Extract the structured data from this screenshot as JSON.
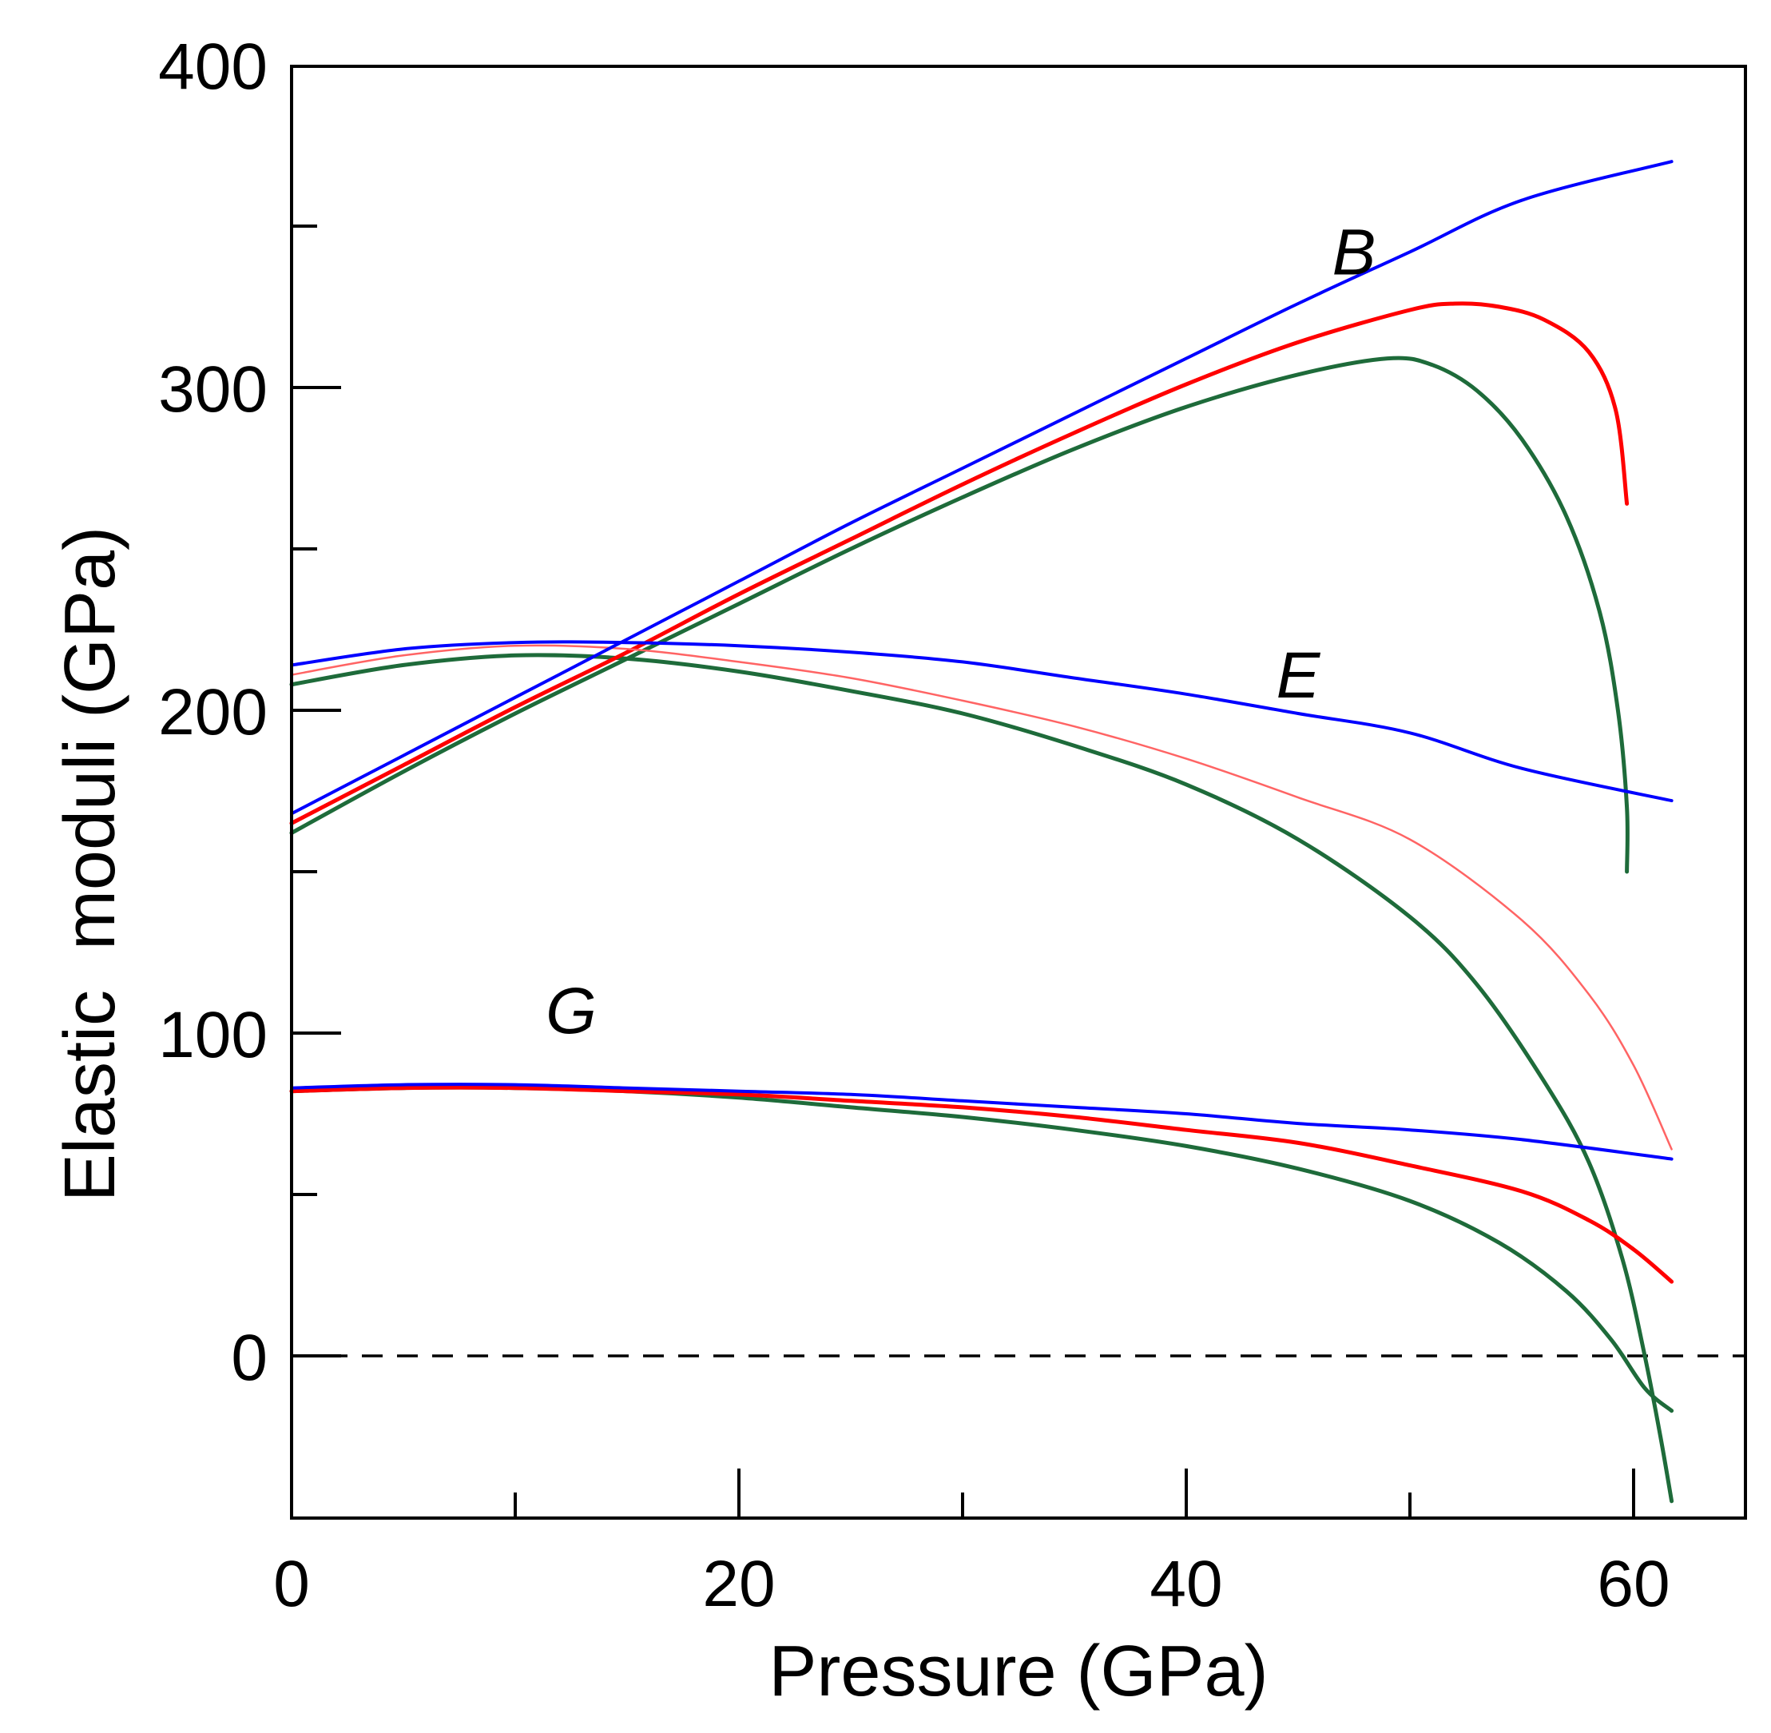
{
  "chart_data": {
    "type": "line",
    "title": "",
    "xlabel": "Pressure (GPa)",
    "ylabel": "Elastic  moduli (GPa)",
    "xlim": [
      0,
      65
    ],
    "ylim": [
      -50,
      400
    ],
    "x_ticks": [
      0,
      20,
      40,
      60
    ],
    "x_minor_ticks": [
      10,
      30,
      50
    ],
    "y_ticks": [
      0,
      100,
      200,
      300,
      400
    ],
    "y_minor_ticks": [
      50,
      150,
      250,
      350
    ],
    "reference_line": {
      "y": 0,
      "style": "dashed",
      "color": "#000000"
    },
    "annotations": [
      {
        "text": "B",
        "x": 47.5,
        "y": 335
      },
      {
        "text": "E",
        "x": 45,
        "y": 204
      },
      {
        "text": "G",
        "x": 12.5,
        "y": 100
      }
    ],
    "series": [
      {
        "name": "B (blue)",
        "group": "B",
        "color": "#0000ff",
        "width": 4,
        "points": [
          [
            0,
            168
          ],
          [
            5,
            186
          ],
          [
            10,
            204
          ],
          [
            15,
            222
          ],
          [
            20,
            240
          ],
          [
            25,
            258
          ],
          [
            30,
            275
          ],
          [
            35,
            292
          ],
          [
            40,
            309
          ],
          [
            45,
            326
          ],
          [
            50,
            342
          ],
          [
            55,
            358
          ],
          [
            61.7,
            370
          ]
        ]
      },
      {
        "name": "B (red)",
        "group": "B",
        "color": "#ff0000",
        "width": 5,
        "points": [
          [
            0,
            165
          ],
          [
            5,
            183
          ],
          [
            10,
            201
          ],
          [
            15,
            218
          ],
          [
            20,
            236
          ],
          [
            25,
            253
          ],
          [
            30,
            270
          ],
          [
            35,
            286
          ],
          [
            40,
            301
          ],
          [
            45,
            314
          ],
          [
            50,
            324
          ],
          [
            52,
            326
          ],
          [
            54,
            325
          ],
          [
            56,
            321
          ],
          [
            58,
            311
          ],
          [
            59.2,
            293
          ],
          [
            59.7,
            264
          ]
        ]
      },
      {
        "name": "B (green)",
        "group": "B",
        "color": "#1e6b3a",
        "width": 5,
        "points": [
          [
            0,
            162
          ],
          [
            5,
            181
          ],
          [
            10,
            199
          ],
          [
            15,
            216
          ],
          [
            20,
            233
          ],
          [
            25,
            250
          ],
          [
            30,
            266
          ],
          [
            35,
            281
          ],
          [
            40,
            294
          ],
          [
            45,
            304
          ],
          [
            49,
            309
          ],
          [
            51,
            307
          ],
          [
            53,
            299
          ],
          [
            55,
            284
          ],
          [
            57,
            260
          ],
          [
            58.5,
            230
          ],
          [
            59.3,
            200
          ],
          [
            59.7,
            170
          ],
          [
            59.7,
            150
          ]
        ]
      },
      {
        "name": "E (blue)",
        "group": "E",
        "color": "#0000ff",
        "width": 4,
        "points": [
          [
            0,
            214
          ],
          [
            5,
            219
          ],
          [
            10,
            221
          ],
          [
            15,
            221
          ],
          [
            20,
            220
          ],
          [
            25,
            218
          ],
          [
            30,
            215
          ],
          [
            35,
            210
          ],
          [
            40,
            205
          ],
          [
            45,
            199
          ],
          [
            50,
            193
          ],
          [
            55,
            182
          ],
          [
            61.7,
            172
          ]
        ]
      },
      {
        "name": "E (red)",
        "group": "E",
        "color": "#ff6464",
        "width": 2.5,
        "points": [
          [
            0,
            211
          ],
          [
            5,
            217
          ],
          [
            10,
            220
          ],
          [
            15,
            219
          ],
          [
            20,
            215
          ],
          [
            25,
            210
          ],
          [
            30,
            203
          ],
          [
            35,
            195
          ],
          [
            40,
            185
          ],
          [
            45,
            173
          ],
          [
            50,
            160
          ],
          [
            55,
            135
          ],
          [
            58,
            112
          ],
          [
            60,
            90
          ],
          [
            61.7,
            64
          ]
        ]
      },
      {
        "name": "E (green)",
        "group": "E",
        "color": "#1e6b3a",
        "width": 5,
        "points": [
          [
            0,
            208
          ],
          [
            5,
            214
          ],
          [
            10,
            217
          ],
          [
            15,
            216
          ],
          [
            20,
            212
          ],
          [
            25,
            206
          ],
          [
            30,
            199
          ],
          [
            35,
            189
          ],
          [
            40,
            177
          ],
          [
            45,
            160
          ],
          [
            50,
            136
          ],
          [
            53,
            115
          ],
          [
            56,
            85
          ],
          [
            58,
            60
          ],
          [
            59.5,
            30
          ],
          [
            60.5,
            0
          ],
          [
            61.2,
            -25
          ],
          [
            61.7,
            -45
          ]
        ]
      },
      {
        "name": "G (blue)",
        "group": "G",
        "color": "#0000ff",
        "width": 4,
        "points": [
          [
            0,
            83
          ],
          [
            5,
            84
          ],
          [
            10,
            84
          ],
          [
            15,
            83
          ],
          [
            20,
            82
          ],
          [
            25,
            81
          ],
          [
            30,
            79
          ],
          [
            35,
            77
          ],
          [
            40,
            75
          ],
          [
            45,
            72
          ],
          [
            50,
            70
          ],
          [
            55,
            67
          ],
          [
            61.7,
            61
          ]
        ]
      },
      {
        "name": "G (red)",
        "group": "G",
        "color": "#ff0000",
        "width": 5,
        "points": [
          [
            0,
            82
          ],
          [
            5,
            83
          ],
          [
            10,
            83
          ],
          [
            15,
            82
          ],
          [
            20,
            81
          ],
          [
            25,
            79
          ],
          [
            30,
            77
          ],
          [
            35,
            74
          ],
          [
            40,
            70
          ],
          [
            45,
            66
          ],
          [
            50,
            59
          ],
          [
            55,
            51
          ],
          [
            58,
            42
          ],
          [
            60,
            33
          ],
          [
            61.7,
            23
          ]
        ]
      },
      {
        "name": "G (green)",
        "group": "G",
        "color": "#1e6b3a",
        "width": 5,
        "points": [
          [
            0,
            82
          ],
          [
            5,
            83
          ],
          [
            10,
            83
          ],
          [
            15,
            82
          ],
          [
            20,
            80
          ],
          [
            25,
            77
          ],
          [
            30,
            74
          ],
          [
            35,
            70
          ],
          [
            40,
            65
          ],
          [
            45,
            58
          ],
          [
            50,
            48
          ],
          [
            54,
            35
          ],
          [
            57,
            20
          ],
          [
            59,
            5
          ],
          [
            60.5,
            -10
          ],
          [
            61.7,
            -17
          ]
        ]
      }
    ]
  }
}
